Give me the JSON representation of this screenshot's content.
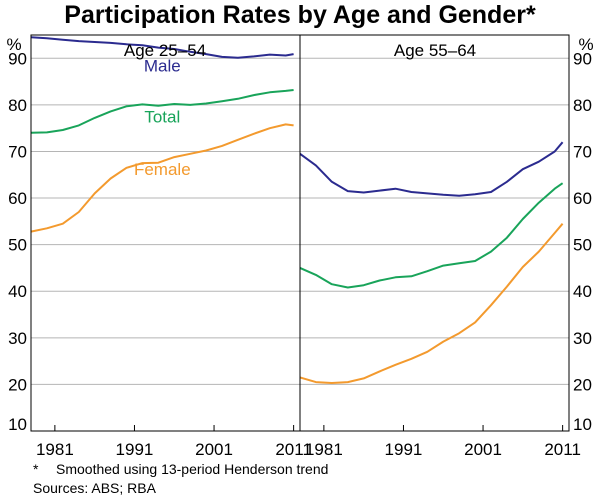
{
  "chart_data": {
    "type": "line",
    "title": "Participation Rates by Age and Gender*",
    "y_unit_label": "%",
    "ylim": [
      10,
      95
    ],
    "yticks": [
      10,
      20,
      30,
      40,
      50,
      60,
      70,
      80,
      90
    ],
    "footnote_marker": "*",
    "footnote_text": "Smoothed using 13-period Henderson trend",
    "sources": "Sources: ABS; RBA",
    "colors": {
      "Male": "#2b2b8f",
      "Total": "#19a45a",
      "Female": "#f39a2e"
    },
    "panels": [
      {
        "title": "Age 25–54",
        "xlim": [
          1978,
          2011.8
        ],
        "xticks": [
          1981,
          1991,
          2001,
          2011
        ],
        "series_labels": [
          {
            "name": "Male",
            "text": "Male",
            "x": 1994.5,
            "y": 88.5
          },
          {
            "name": "Total",
            "text": "Total",
            "x": 1994.5,
            "y": 77.5
          },
          {
            "name": "Female",
            "text": "Female",
            "x": 1994.5,
            "y": 66.2
          }
        ],
        "series": [
          {
            "name": "Male",
            "x": [
              1978,
              1980,
              1982,
              1984,
              1986,
              1988,
              1990,
              1992,
              1994,
              1996,
              1998,
              2000,
              2002,
              2004,
              2006,
              2008,
              2010,
              2011
            ],
            "y": [
              94.5,
              94.3,
              94.0,
              93.7,
              93.5,
              93.3,
              93.0,
              92.8,
              92.3,
              92.0,
              91.4,
              90.9,
              90.3,
              90.1,
              90.4,
              90.8,
              90.6,
              90.9
            ]
          },
          {
            "name": "Total",
            "x": [
              1978,
              1980,
              1982,
              1984,
              1986,
              1988,
              1990,
              1992,
              1994,
              1996,
              1998,
              2000,
              2002,
              2004,
              2006,
              2008,
              2010,
              2011
            ],
            "y": [
              74.0,
              74.1,
              74.6,
              75.6,
              77.2,
              78.6,
              79.7,
              80.1,
              79.8,
              80.2,
              80.0,
              80.3,
              80.8,
              81.3,
              82.1,
              82.7,
              83.0,
              83.2
            ]
          },
          {
            "name": "Female",
            "x": [
              1978,
              1980,
              1982,
              1984,
              1986,
              1988,
              1990,
              1992,
              1994,
              1996,
              1998,
              2000,
              2002,
              2004,
              2006,
              2008,
              2010,
              2011
            ],
            "y": [
              52.8,
              53.5,
              54.5,
              57.0,
              61.0,
              64.2,
              66.5,
              67.5,
              67.6,
              68.8,
              69.5,
              70.2,
              71.2,
              72.5,
              73.8,
              75.0,
              75.8,
              75.6
            ]
          }
        ]
      },
      {
        "title": "Age 55–64",
        "xlim": [
          1978,
          2011.8
        ],
        "xticks": [
          1981,
          1991,
          2001,
          2011
        ],
        "series": [
          {
            "name": "Male",
            "x": [
              1978,
              1980,
              1982,
              1984,
              1986,
              1988,
              1990,
              1992,
              1994,
              1996,
              1998,
              2000,
              2002,
              2004,
              2006,
              2008,
              2010,
              2011
            ],
            "y": [
              69.5,
              67.0,
              63.5,
              61.5,
              61.2,
              61.6,
              62.0,
              61.3,
              61.0,
              60.7,
              60.5,
              60.8,
              61.3,
              63.5,
              66.2,
              67.8,
              70.0,
              72.0
            ]
          },
          {
            "name": "Total",
            "x": [
              1978,
              1980,
              1982,
              1984,
              1986,
              1988,
              1990,
              1992,
              1994,
              1996,
              1998,
              2000,
              2002,
              2004,
              2006,
              2008,
              2010,
              2011
            ],
            "y": [
              45.0,
              43.5,
              41.5,
              40.8,
              41.3,
              42.3,
              43.0,
              43.2,
              44.3,
              45.5,
              46.0,
              46.5,
              48.5,
              51.5,
              55.5,
              59.0,
              62.0,
              63.2
            ]
          },
          {
            "name": "Female",
            "x": [
              1978,
              1980,
              1982,
              1984,
              1986,
              1988,
              1990,
              1992,
              1994,
              1996,
              1998,
              2000,
              2002,
              2004,
              2006,
              2008,
              2010,
              2011
            ],
            "y": [
              21.5,
              20.5,
              20.3,
              20.5,
              21.3,
              22.8,
              24.2,
              25.5,
              27.0,
              29.2,
              31.0,
              33.3,
              37.0,
              41.0,
              45.2,
              48.5,
              52.5,
              54.5
            ]
          }
        ]
      }
    ]
  }
}
